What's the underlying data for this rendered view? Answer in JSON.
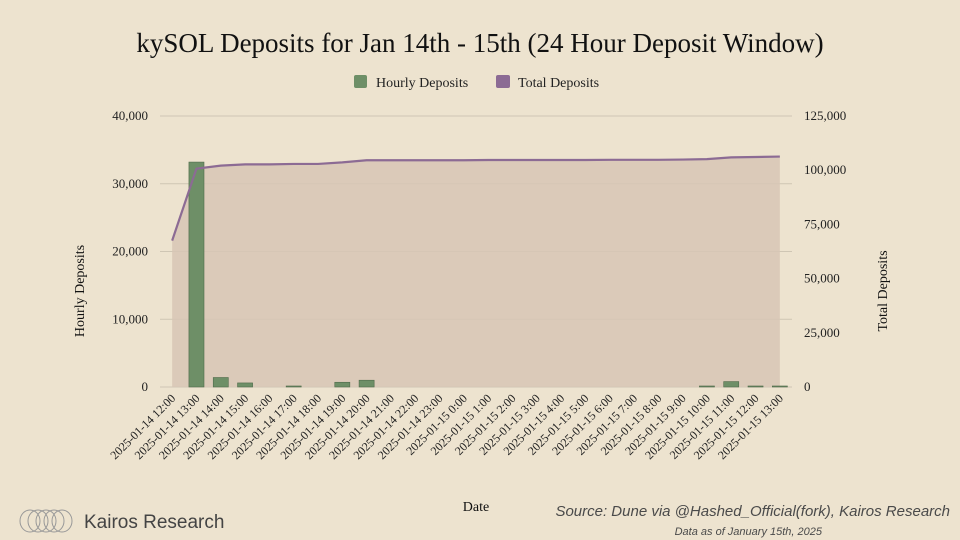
{
  "chart_data": {
    "type": "bar",
    "title": "kySOL Deposits for Jan 14th - 15th (24 Hour Deposit Window)",
    "xlabel": "Date",
    "ylabel": "Hourly Deposits",
    "y2label": "Total Deposits",
    "ylim": [
      0,
      40000
    ],
    "y2lim": [
      0,
      125000
    ],
    "yticks": [
      "0",
      "10,000",
      "20,000",
      "30,000",
      "40,000"
    ],
    "y2ticks": [
      "0",
      "25,000",
      "50,000",
      "75,000",
      "100,000",
      "125,000"
    ],
    "legend_position": "top-center",
    "categories": [
      "2025-01-14 12:00",
      "2025-01-14 13:00",
      "2025-01-14 14:00",
      "2025-01-14 15:00",
      "2025-01-14 16:00",
      "2025-01-14 17:00",
      "2025-01-14 18:00",
      "2025-01-14 19:00",
      "2025-01-14 20:00",
      "2025-01-14 21:00",
      "2025-01-14 22:00",
      "2025-01-14 23:00",
      "2025-01-15 0:00",
      "2025-01-15 1:00",
      "2025-01-15 2:00",
      "2025-01-15 3:00",
      "2025-01-15 4:00",
      "2025-01-15 5:00",
      "2025-01-15 6:00",
      "2025-01-15 7:00",
      "2025-01-15 8:00",
      "2025-01-15 9:00",
      "2025-01-15 10:00",
      "2025-01-15 11:00",
      "2025-01-15 12:00",
      "2025-01-15 13:00"
    ],
    "series": [
      {
        "name": "Hourly Deposits",
        "type": "bar",
        "axis": "left",
        "color": "#6e8f67",
        "values": [
          0,
          33200,
          1400,
          600,
          0,
          150,
          0,
          700,
          1000,
          0,
          0,
          0,
          0,
          0,
          0,
          0,
          0,
          0,
          0,
          0,
          0,
          0,
          150,
          800,
          150,
          150
        ]
      },
      {
        "name": "Total Deposits",
        "type": "area",
        "axis": "right",
        "color": "#8c6b94",
        "fill": "#d7c5b5",
        "values": [
          67500,
          100700,
          102100,
          102700,
          102700,
          102900,
          102900,
          103600,
          104600,
          104600,
          104600,
          104600,
          104600,
          104700,
          104700,
          104700,
          104700,
          104700,
          104800,
          104800,
          104800,
          104900,
          105100,
          105900,
          106100,
          106300
        ]
      }
    ]
  },
  "footer": {
    "source": "Source: Dune via @Hashed_Official(fork), Kairos Research",
    "as_of": "Data as of January 15th, 2025",
    "brand": "Kairos Research"
  },
  "colors": {
    "background": "#ede3cf",
    "grid": "#cfc6b4",
    "text": "#222222"
  }
}
